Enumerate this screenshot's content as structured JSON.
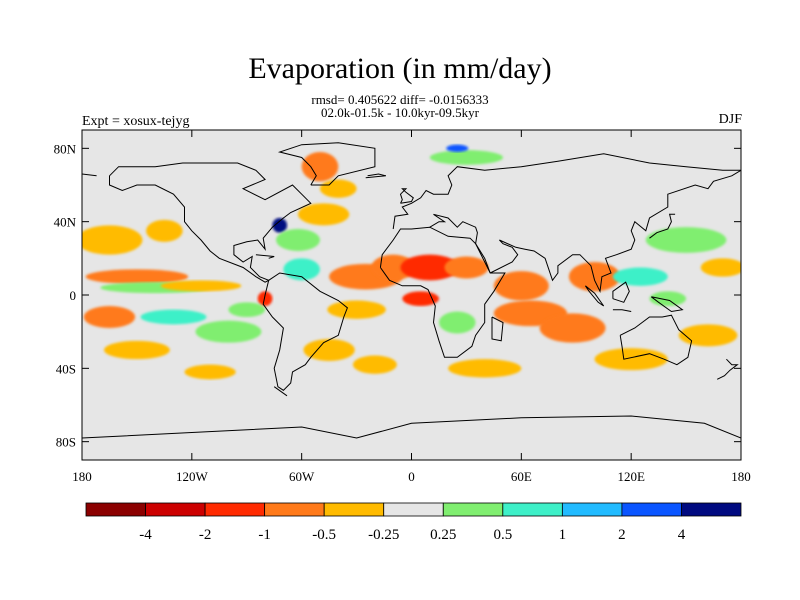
{
  "header": {
    "title": "Evaporation (in mm/day)",
    "stats_line": "rmsd= 0.405622 diff= -0.0156333",
    "period_line": "02.0k-01.5k - 10.0kyr-09.5kyr",
    "experiment": "Expt = xosux-tejyg",
    "season": "DJF"
  },
  "map": {
    "projection": "cylindrical-equidistant",
    "lon_range": [
      -180,
      180
    ],
    "lat_range": [
      -90,
      90
    ],
    "background_color": "#e6e6e6",
    "lat_ticks": [
      {
        "value": 80,
        "label": "80N"
      },
      {
        "value": 40,
        "label": "40N"
      },
      {
        "value": 0,
        "label": "0"
      },
      {
        "value": -40,
        "label": "40S"
      },
      {
        "value": -80,
        "label": "80S"
      }
    ],
    "lon_ticks": [
      {
        "value": -180,
        "label": "180"
      },
      {
        "value": -120,
        "label": "120W"
      },
      {
        "value": -60,
        "label": "60W"
      },
      {
        "value": 0,
        "label": "0"
      },
      {
        "value": 60,
        "label": "60E"
      },
      {
        "value": 120,
        "label": "120E"
      },
      {
        "value": 180,
        "label": "180"
      }
    ]
  },
  "colorbar": {
    "colors": [
      "#8b0000",
      "#cc0000",
      "#ff2a00",
      "#ff7a1a",
      "#ffbb00",
      "#e6e6e6",
      "#80ee70",
      "#3ef0c8",
      "#22bbff",
      "#0a55ff",
      "#000a80"
    ],
    "labels": [
      "-4",
      "-2",
      "-1",
      "-0.5",
      "-0.25",
      "0.25",
      "0.5",
      "1",
      "2",
      "4"
    ]
  },
  "anomalies": [
    {
      "lon": -165,
      "lat": 30,
      "rx": 18,
      "ry": 8,
      "level": 4
    },
    {
      "lon": -135,
      "lat": 35,
      "rx": 10,
      "ry": 6,
      "level": 4
    },
    {
      "lon": -150,
      "lat": 10,
      "rx": 28,
      "ry": 4,
      "level": 3
    },
    {
      "lon": -140,
      "lat": 4,
      "rx": 30,
      "ry": 3,
      "level": 6
    },
    {
      "lon": -115,
      "lat": 5,
      "rx": 22,
      "ry": 3,
      "level": 4
    },
    {
      "lon": -165,
      "lat": -12,
      "rx": 14,
      "ry": 6,
      "level": 3
    },
    {
      "lon": -130,
      "lat": -12,
      "rx": 18,
      "ry": 4,
      "level": 7
    },
    {
      "lon": -100,
      "lat": -20,
      "rx": 18,
      "ry": 6,
      "level": 6
    },
    {
      "lon": -150,
      "lat": -30,
      "rx": 18,
      "ry": 5,
      "level": 4
    },
    {
      "lon": -110,
      "lat": -42,
      "rx": 14,
      "ry": 4,
      "level": 4
    },
    {
      "lon": -72,
      "lat": 38,
      "rx": 4,
      "ry": 4,
      "level": 10
    },
    {
      "lon": -62,
      "lat": 30,
      "rx": 12,
      "ry": 6,
      "level": 6
    },
    {
      "lon": -48,
      "lat": 44,
      "rx": 14,
      "ry": 6,
      "level": 4
    },
    {
      "lon": -50,
      "lat": 70,
      "rx": 10,
      "ry": 8,
      "level": 3
    },
    {
      "lon": -40,
      "lat": 58,
      "rx": 10,
      "ry": 5,
      "level": 4
    },
    {
      "lon": -60,
      "lat": 14,
      "rx": 10,
      "ry": 6,
      "level": 7
    },
    {
      "lon": -25,
      "lat": 10,
      "rx": 20,
      "ry": 7,
      "level": 3
    },
    {
      "lon": -30,
      "lat": -8,
      "rx": 16,
      "ry": 5,
      "level": 4
    },
    {
      "lon": -45,
      "lat": -30,
      "rx": 14,
      "ry": 6,
      "level": 4
    },
    {
      "lon": -20,
      "lat": -38,
      "rx": 12,
      "ry": 5,
      "level": 4
    },
    {
      "lon": -80,
      "lat": -2,
      "rx": 4,
      "ry": 4,
      "level": 2
    },
    {
      "lon": -10,
      "lat": 15,
      "rx": 12,
      "ry": 7,
      "level": 3
    },
    {
      "lon": 10,
      "lat": 15,
      "rx": 16,
      "ry": 7,
      "level": 2
    },
    {
      "lon": 30,
      "lat": 15,
      "rx": 12,
      "ry": 6,
      "level": 3
    },
    {
      "lon": 5,
      "lat": -2,
      "rx": 10,
      "ry": 4,
      "level": 2
    },
    {
      "lon": 25,
      "lat": -15,
      "rx": 10,
      "ry": 6,
      "level": 6
    },
    {
      "lon": 60,
      "lat": 5,
      "rx": 15,
      "ry": 8,
      "level": 3
    },
    {
      "lon": 65,
      "lat": -10,
      "rx": 20,
      "ry": 7,
      "level": 3
    },
    {
      "lon": 88,
      "lat": -18,
      "rx": 18,
      "ry": 8,
      "level": 3
    },
    {
      "lon": 100,
      "lat": 10,
      "rx": 14,
      "ry": 8,
      "level": 3
    },
    {
      "lon": 125,
      "lat": 10,
      "rx": 15,
      "ry": 5,
      "level": 7
    },
    {
      "lon": 140,
      "lat": -2,
      "rx": 10,
      "ry": 4,
      "level": 6
    },
    {
      "lon": 150,
      "lat": 30,
      "rx": 22,
      "ry": 7,
      "level": 6
    },
    {
      "lon": 170,
      "lat": 15,
      "rx": 12,
      "ry": 5,
      "level": 4
    },
    {
      "lon": 162,
      "lat": -22,
      "rx": 16,
      "ry": 6,
      "level": 4
    },
    {
      "lon": 120,
      "lat": -35,
      "rx": 20,
      "ry": 6,
      "level": 4
    },
    {
      "lon": 40,
      "lat": -40,
      "rx": 20,
      "ry": 5,
      "level": 4
    },
    {
      "lon": 30,
      "lat": 75,
      "rx": 20,
      "ry": 4,
      "level": 6
    },
    {
      "lon": 25,
      "lat": 80,
      "rx": 6,
      "ry": 2,
      "level": 9
    },
    {
      "lon": -90,
      "lat": -8,
      "rx": 10,
      "ry": 4,
      "level": 6
    }
  ],
  "coastlines": [
    [
      [
        -165,
        65
      ],
      [
        -160,
        70
      ],
      [
        -140,
        70
      ],
      [
        -125,
        72
      ],
      [
        -95,
        72
      ],
      [
        -85,
        68
      ],
      [
        -80,
        63
      ],
      [
        -92,
        58
      ],
      [
        -80,
        52
      ],
      [
        -65,
        60
      ],
      [
        -60,
        55
      ],
      [
        -55,
        50
      ],
      [
        -66,
        45
      ],
      [
        -70,
        42
      ],
      [
        -76,
        37
      ],
      [
        -81,
        31
      ],
      [
        -80,
        25
      ],
      [
        -84,
        30
      ],
      [
        -90,
        29
      ],
      [
        -97,
        27
      ],
      [
        -97,
        22
      ],
      [
        -92,
        18
      ],
      [
        -87,
        21
      ],
      [
        -88,
        15
      ],
      [
        -83,
        10
      ],
      [
        -78,
        8
      ],
      [
        -80,
        7
      ],
      [
        -85,
        10
      ],
      [
        -92,
        15
      ],
      [
        -105,
        20
      ],
      [
        -110,
        24
      ],
      [
        -115,
        30
      ],
      [
        -120,
        35
      ],
      [
        -124,
        40
      ],
      [
        -124,
        48
      ],
      [
        -130,
        55
      ],
      [
        -140,
        60
      ],
      [
        -150,
        60
      ],
      [
        -158,
        57
      ],
      [
        -165,
        60
      ],
      [
        -165,
        65
      ]
    ],
    [
      [
        -78,
        8
      ],
      [
        -72,
        12
      ],
      [
        -60,
        10
      ],
      [
        -50,
        2
      ],
      [
        -40,
        -3
      ],
      [
        -35,
        -7
      ],
      [
        -37,
        -12
      ],
      [
        -40,
        -22
      ],
      [
        -48,
        -26
      ],
      [
        -55,
        -34
      ],
      [
        -58,
        -38
      ],
      [
        -65,
        -42
      ],
      [
        -66,
        -48
      ],
      [
        -70,
        -52
      ],
      [
        -73,
        -50
      ],
      [
        -75,
        -40
      ],
      [
        -72,
        -30
      ],
      [
        -70,
        -18
      ],
      [
        -76,
        -12
      ],
      [
        -81,
        -5
      ],
      [
        -80,
        0
      ],
      [
        -78,
        8
      ]
    ],
    [
      [
        -17,
        15
      ],
      [
        -16,
        22
      ],
      [
        -10,
        30
      ],
      [
        -6,
        36
      ],
      [
        0,
        36
      ],
      [
        10,
        37
      ],
      [
        20,
        32
      ],
      [
        32,
        31
      ],
      [
        35,
        28
      ],
      [
        43,
        12
      ],
      [
        51,
        12
      ],
      [
        45,
        2
      ],
      [
        40,
        -5
      ],
      [
        40,
        -15
      ],
      [
        35,
        -22
      ],
      [
        33,
        -28
      ],
      [
        25,
        -34
      ],
      [
        18,
        -34
      ],
      [
        15,
        -25
      ],
      [
        12,
        -15
      ],
      [
        13,
        -6
      ],
      [
        9,
        3
      ],
      [
        5,
        5
      ],
      [
        -5,
        5
      ],
      [
        -12,
        8
      ],
      [
        -17,
        15
      ]
    ],
    [
      [
        -10,
        36
      ],
      [
        -9,
        43
      ],
      [
        -2,
        44
      ],
      [
        -5,
        48
      ],
      [
        0,
        50
      ],
      [
        5,
        53
      ],
      [
        8,
        57
      ],
      [
        12,
        55
      ],
      [
        20,
        55
      ],
      [
        22,
        60
      ],
      [
        20,
        65
      ],
      [
        25,
        70
      ],
      [
        40,
        68
      ],
      [
        60,
        70
      ],
      [
        80,
        73
      ],
      [
        105,
        77
      ],
      [
        130,
        72
      ],
      [
        150,
        70
      ],
      [
        170,
        68
      ],
      [
        180,
        68
      ]
    ],
    [
      [
        -180,
        66
      ],
      [
        -172,
        65
      ]
    ],
    [
      [
        10,
        37
      ],
      [
        15,
        40
      ],
      [
        18,
        40
      ],
      [
        12,
        44
      ],
      [
        20,
        42
      ],
      [
        25,
        37
      ],
      [
        28,
        40
      ],
      [
        35,
        37
      ],
      [
        36,
        34
      ],
      [
        35,
        28
      ],
      [
        40,
        20
      ],
      [
        43,
        12
      ]
    ],
    [
      [
        43,
        12
      ],
      [
        55,
        18
      ],
      [
        58,
        22
      ],
      [
        55,
        26
      ],
      [
        50,
        28
      ],
      [
        48,
        30
      ],
      [
        57,
        26
      ],
      [
        62,
        25
      ],
      [
        67,
        24
      ],
      [
        73,
        20
      ],
      [
        77,
        8
      ],
      [
        80,
        12
      ],
      [
        80,
        16
      ],
      [
        88,
        22
      ],
      [
        92,
        22
      ],
      [
        98,
        16
      ],
      [
        100,
        8
      ],
      [
        103,
        2
      ],
      [
        104,
        10
      ],
      [
        109,
        12
      ],
      [
        106,
        20
      ],
      [
        112,
        22
      ],
      [
        120,
        25
      ],
      [
        122,
        30
      ],
      [
        120,
        35
      ],
      [
        122,
        40
      ],
      [
        128,
        35
      ],
      [
        130,
        42
      ],
      [
        140,
        48
      ],
      [
        140,
        55
      ],
      [
        155,
        60
      ],
      [
        162,
        58
      ],
      [
        165,
        62
      ],
      [
        175,
        65
      ],
      [
        180,
        68
      ]
    ],
    [
      [
        114,
        -22
      ],
      [
        122,
        -18
      ],
      [
        130,
        -12
      ],
      [
        137,
        -12
      ],
      [
        142,
        -11
      ],
      [
        146,
        -19
      ],
      [
        153,
        -25
      ],
      [
        151,
        -34
      ],
      [
        145,
        -38
      ],
      [
        138,
        -35
      ],
      [
        130,
        -32
      ],
      [
        116,
        -35
      ],
      [
        115,
        -28
      ],
      [
        114,
        -22
      ]
    ],
    [
      [
        -55,
        60
      ],
      [
        -45,
        60
      ],
      [
        -40,
        65
      ],
      [
        -20,
        70
      ],
      [
        -20,
        80
      ],
      [
        -40,
        83
      ],
      [
        -60,
        82
      ],
      [
        -72,
        78
      ],
      [
        -60,
        75
      ],
      [
        -55,
        70
      ],
      [
        -52,
        65
      ],
      [
        -55,
        60
      ]
    ],
    [
      [
        -6,
        50
      ],
      [
        0,
        51
      ],
      [
        1,
        53
      ],
      [
        -3,
        56
      ],
      [
        -5,
        58
      ],
      [
        -3,
        58
      ],
      [
        -6,
        55
      ],
      [
        -5,
        52
      ],
      [
        -6,
        50
      ]
    ],
    [
      [
        95,
        5
      ],
      [
        100,
        1
      ],
      [
        105,
        -6
      ],
      [
        102,
        -4
      ],
      [
        97,
        2
      ],
      [
        95,
        5
      ]
    ],
    [
      [
        110,
        -8
      ],
      [
        115,
        -8
      ],
      [
        120,
        -9
      ]
    ],
    [
      [
        110,
        -2
      ],
      [
        110,
        2
      ],
      [
        117,
        7
      ],
      [
        119,
        2
      ],
      [
        116,
        -4
      ],
      [
        110,
        -2
      ]
    ],
    [
      [
        131,
        -1
      ],
      [
        141,
        -3
      ],
      [
        148,
        -8
      ],
      [
        142,
        -9
      ],
      [
        135,
        -4
      ],
      [
        131,
        -1
      ]
    ],
    [
      [
        130,
        31
      ],
      [
        134,
        34
      ],
      [
        140,
        36
      ],
      [
        142,
        40
      ],
      [
        141,
        44
      ],
      [
        144,
        44
      ]
    ],
    [
      [
        172,
        -35
      ],
      [
        175,
        -38
      ],
      [
        178,
        -38
      ],
      [
        174,
        -41
      ],
      [
        171,
        -44
      ],
      [
        167,
        -46
      ]
    ],
    [
      [
        44,
        -12
      ],
      [
        50,
        -15
      ],
      [
        49,
        -25
      ],
      [
        44,
        -24
      ],
      [
        44,
        -12
      ]
    ],
    [
      [
        -75,
        -50
      ],
      [
        -68,
        -55
      ]
    ],
    [
      [
        -180,
        -78
      ],
      [
        -120,
        -75
      ],
      [
        -60,
        -72
      ],
      [
        -30,
        -78
      ],
      [
        0,
        -70
      ],
      [
        60,
        -67
      ],
      [
        120,
        -66
      ],
      [
        160,
        -70
      ],
      [
        180,
        -78
      ]
    ],
    [
      [
        -85,
        22
      ],
      [
        -75,
        21
      ],
      [
        -78,
        20
      ]
    ],
    [
      [
        -25,
        64
      ],
      [
        -14,
        65
      ],
      [
        -18,
        66
      ],
      [
        -24,
        65
      ]
    ]
  ]
}
